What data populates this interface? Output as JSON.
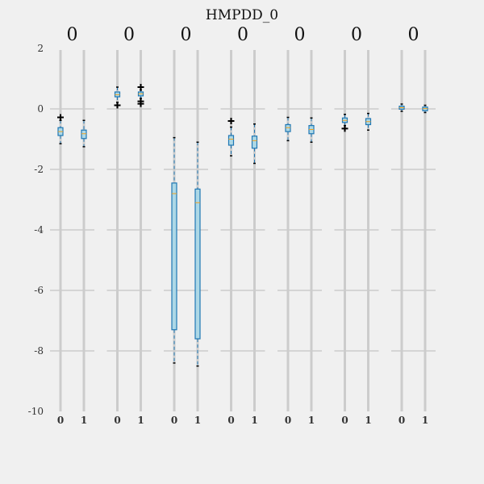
{
  "chart_data": {
    "type": "box",
    "title": "HMPDD_0",
    "ylim": [
      -10,
      2
    ],
    "yticks": [
      2,
      0,
      -2,
      -4,
      -6,
      -8,
      -10
    ],
    "grid": true,
    "colors": {
      "box_fill": "#add8e6",
      "box_edge": "#1f77b4",
      "whisker": "#1f77b4",
      "median": "#f0a020",
      "outlier": "#000000",
      "grid": "#cccccc",
      "vline": "#cccccc"
    },
    "panels": [
      {
        "title": "0",
        "categories": [
          "0",
          "1"
        ],
        "boxes": [
          {
            "label": "0",
            "whislo": -1.15,
            "q1": -0.88,
            "med": -0.75,
            "q3": -0.62,
            "whishi": -0.38,
            "fliers": [
              -0.28
            ]
          },
          {
            "label": "1",
            "whislo": -1.25,
            "q1": -0.98,
            "med": -0.82,
            "q3": -0.7,
            "whishi": -0.38,
            "fliers": []
          }
        ]
      },
      {
        "title": "0",
        "categories": [
          "0",
          "1"
        ],
        "boxes": [
          {
            "label": "0",
            "whislo": 0.22,
            "q1": 0.4,
            "med": 0.47,
            "q3": 0.56,
            "whishi": 0.72,
            "fliers": [
              0.12
            ]
          },
          {
            "label": "1",
            "whislo": 0.35,
            "q1": 0.43,
            "med": 0.5,
            "q3": 0.56,
            "whishi": 0.62,
            "fliers": [
              0.72,
              0.25,
              0.17
            ]
          }
        ]
      },
      {
        "title": "0",
        "categories": [
          "0",
          "1"
        ],
        "boxes": [
          {
            "label": "0",
            "whislo": -8.4,
            "q1": -7.3,
            "med": -2.8,
            "q3": -2.45,
            "whishi": -0.95,
            "fliers": []
          },
          {
            "label": "1",
            "whislo": -8.5,
            "q1": -7.6,
            "med": -3.1,
            "q3": -2.65,
            "whishi": -1.1,
            "fliers": []
          }
        ]
      },
      {
        "title": "0",
        "categories": [
          "0",
          "1"
        ],
        "boxes": [
          {
            "label": "0",
            "whislo": -1.55,
            "q1": -1.2,
            "med": -1.0,
            "q3": -0.88,
            "whishi": -0.6,
            "fliers": [
              -0.4
            ]
          },
          {
            "label": "1",
            "whislo": -1.8,
            "q1": -1.3,
            "med": -1.05,
            "q3": -0.9,
            "whishi": -0.5,
            "fliers": []
          }
        ]
      },
      {
        "title": "0",
        "categories": [
          "0",
          "1"
        ],
        "boxes": [
          {
            "label": "0",
            "whislo": -1.05,
            "q1": -0.75,
            "med": -0.62,
            "q3": -0.52,
            "whishi": -0.28,
            "fliers": []
          },
          {
            "label": "1",
            "whislo": -1.1,
            "q1": -0.82,
            "med": -0.68,
            "q3": -0.55,
            "whishi": -0.3,
            "fliers": []
          }
        ]
      },
      {
        "title": "0",
        "categories": [
          "0",
          "1"
        ],
        "boxes": [
          {
            "label": "0",
            "whislo": -0.55,
            "q1": -0.45,
            "med": -0.38,
            "q3": -0.3,
            "whishi": -0.18,
            "fliers": [
              -0.65
            ]
          },
          {
            "label": "1",
            "whislo": -0.7,
            "q1": -0.52,
            "med": -0.42,
            "q3": -0.32,
            "whishi": -0.15,
            "fliers": []
          }
        ]
      },
      {
        "title": "0",
        "categories": [
          "0",
          "1"
        ],
        "boxes": [
          {
            "label": "0",
            "whislo": -0.08,
            "q1": -0.01,
            "med": 0.04,
            "q3": 0.09,
            "whishi": 0.16,
            "fliers": []
          },
          {
            "label": "1",
            "whislo": -0.12,
            "q1": -0.06,
            "med": 0.01,
            "q3": 0.06,
            "whishi": 0.12,
            "fliers": []
          }
        ]
      }
    ]
  }
}
